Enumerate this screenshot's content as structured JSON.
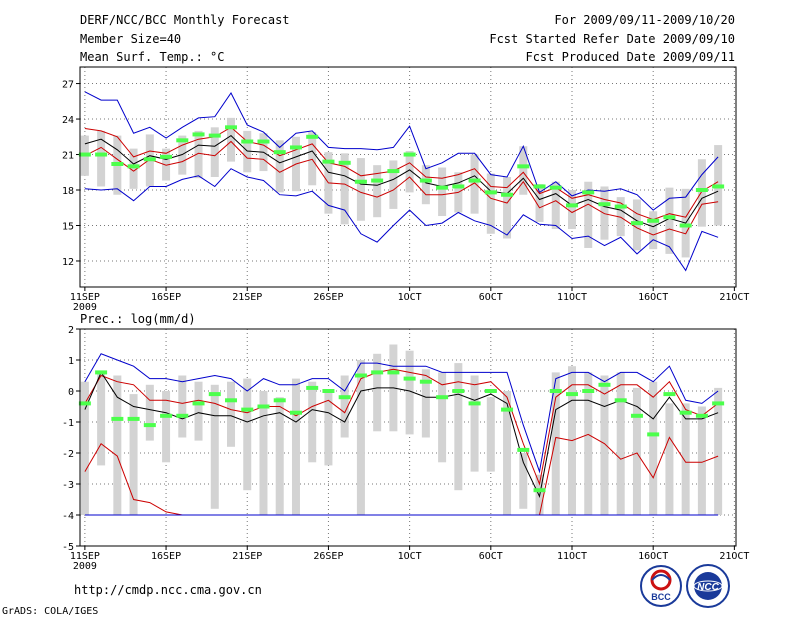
{
  "header": {
    "title": "DERF/NCC/BCC Monthly Forecast",
    "member_size": "Member Size=40",
    "variable_top": "Mean Surf. Temp.: °C",
    "period": "For 2009/09/11-2009/10/20",
    "start_date": "Fcst Started Refer Date 2009/09/10",
    "produced_date": "Fcst Produced Date 2009/09/11"
  },
  "footer": {
    "url": "http://cmdp.ncc.cma.gov.cn",
    "credit": "GrADS: COLA/IGES",
    "logo_bcc": "BCC",
    "logo_ncc": "NCC"
  },
  "colors": {
    "max_min": "#0000cc",
    "percentile": "#cc0000",
    "ensemble_mean": "#000000",
    "observation_marker": "#4cff4c",
    "spread_bar": "#d3d3d3"
  },
  "chart_data": [
    {
      "type": "line",
      "title": "Mean Surf. Temp.: °C",
      "x_tick_labels": [
        "11SEP",
        "16SEP",
        "21SEP",
        "26SEP",
        "1OCT",
        "6OCT",
        "11OCT",
        "16OCT",
        "21OCT"
      ],
      "x_year_label": "2009",
      "x_days": [
        1,
        2,
        3,
        4,
        5,
        6,
        7,
        8,
        9,
        10,
        11,
        12,
        13,
        14,
        15,
        16,
        17,
        18,
        19,
        20,
        21,
        22,
        23,
        24,
        25,
        26,
        27,
        28,
        29,
        30,
        31,
        32,
        33,
        34,
        35,
        36,
        37,
        38,
        39,
        40
      ],
      "ylim": [
        9.8,
        28.4
      ],
      "y_ticks": [
        12,
        15,
        18,
        21,
        24,
        27
      ],
      "series": [
        {
          "name": "max",
          "color": "#0000cc",
          "values": [
            26.3,
            25.6,
            25.6,
            22.8,
            23.3,
            22.4,
            23.3,
            24.1,
            24.2,
            26.2,
            23.5,
            22.9,
            21.6,
            22.8,
            23.0,
            21.6,
            21.5,
            21.5,
            21.4,
            21.6,
            23.4,
            19.8,
            20.3,
            21.1,
            21.1,
            19.3,
            19.1,
            21.7,
            17.8,
            18.7,
            17.5,
            18.0,
            17.9,
            18.1,
            17.6,
            16.3,
            17.3,
            17.4,
            19.3,
            20.8
          ]
        },
        {
          "name": "p90",
          "color": "#cc0000",
          "values": [
            23.2,
            23.0,
            22.5,
            20.8,
            21.3,
            21.1,
            21.8,
            22.3,
            22.5,
            23.3,
            22.1,
            21.8,
            20.9,
            21.4,
            21.9,
            20.3,
            20.0,
            19.2,
            19.4,
            19.6,
            20.3,
            19.1,
            19.0,
            19.3,
            19.8,
            18.3,
            18.2,
            19.5,
            17.7,
            18.2,
            17.3,
            17.6,
            17.2,
            16.9,
            16.0,
            15.5,
            16.0,
            15.7,
            17.9,
            18.7
          ]
        },
        {
          "name": "mean",
          "color": "#000000",
          "values": [
            21.9,
            22.3,
            21.4,
            20.2,
            20.9,
            20.6,
            21.0,
            21.8,
            21.7,
            22.6,
            21.3,
            21.2,
            20.3,
            20.8,
            21.3,
            19.5,
            19.2,
            18.5,
            18.4,
            18.9,
            19.7,
            18.6,
            18.3,
            18.6,
            19.2,
            17.9,
            17.7,
            19.0,
            17.2,
            17.7,
            16.7,
            17.2,
            16.6,
            16.3,
            15.4,
            14.9,
            15.6,
            15.2,
            17.3,
            17.9
          ]
        },
        {
          "name": "p10",
          "color": "#cc0000",
          "values": [
            20.9,
            21.6,
            20.6,
            19.6,
            20.6,
            20.1,
            20.4,
            21.1,
            20.9,
            22.1,
            20.7,
            20.6,
            19.5,
            20.2,
            20.6,
            18.6,
            18.5,
            17.8,
            17.4,
            18.0,
            19.1,
            17.6,
            17.6,
            17.8,
            18.6,
            17.3,
            16.9,
            18.7,
            16.5,
            17.1,
            16.1,
            16.8,
            16.0,
            15.7,
            14.8,
            14.2,
            14.7,
            14.3,
            16.8,
            17.0
          ]
        },
        {
          "name": "min",
          "color": "#0000cc",
          "values": [
            18.1,
            18.0,
            18.1,
            17.1,
            18.3,
            18.3,
            18.9,
            19.2,
            18.3,
            19.8,
            19.1,
            18.8,
            17.6,
            17.5,
            17.9,
            16.7,
            16.3,
            14.3,
            13.6,
            15.0,
            16.3,
            15.0,
            15.2,
            16.1,
            15.4,
            15.0,
            14.2,
            15.9,
            15.1,
            15.0,
            13.9,
            14.1,
            13.3,
            14.0,
            12.6,
            13.8,
            13.2,
            11.2,
            14.5,
            14.0
          ]
        }
      ],
      "spread": {
        "high": [
          22.6,
          23.0,
          22.6,
          21.5,
          22.7,
          21.5,
          22.6,
          23.0,
          23.3,
          24.1,
          23.0,
          22.8,
          22.2,
          22.5,
          22.9,
          21.2,
          21.1,
          20.7,
          20.1,
          20.5,
          21.3,
          20.1,
          19.9,
          19.5,
          21.0,
          19.4,
          19.1,
          21.7,
          18.5,
          18.7,
          18.0,
          18.7,
          18.3,
          17.4,
          17.2,
          16.2,
          18.2,
          18.1,
          20.6,
          21.8
        ],
        "low": [
          19.2,
          18.3,
          17.6,
          18.1,
          18.3,
          18.8,
          19.3,
          19.0,
          19.1,
          20.4,
          19.5,
          19.6,
          17.8,
          17.9,
          18.4,
          16.0,
          15.1,
          15.4,
          15.7,
          16.4,
          17.8,
          16.8,
          15.8,
          16.1,
          16.0,
          14.3,
          13.9,
          17.6,
          15.3,
          14.7,
          14.7,
          13.1,
          13.8,
          14.1,
          12.9,
          13.0,
          12.6,
          12.3,
          14.9,
          15.0
        ]
      },
      "observations": [
        21.0,
        21.0,
        20.2,
        20.0,
        20.6,
        20.8,
        22.2,
        22.7,
        22.6,
        23.3,
        22.1,
        22.1,
        21.2,
        21.6,
        22.5,
        20.4,
        20.3,
        18.7,
        18.8,
        19.6,
        21.0,
        18.8,
        18.2,
        18.3,
        18.8,
        17.8,
        17.6,
        20.0,
        18.3,
        18.2,
        16.7,
        17.8,
        16.8,
        16.6,
        15.2,
        15.4,
        15.7,
        15.0,
        18.0,
        18.3
      ]
    },
    {
      "type": "line",
      "title": "Prec.: log(mm/d)",
      "x_tick_labels": [
        "11SEP",
        "16SEP",
        "21SEP",
        "26SEP",
        "1OCT",
        "6OCT",
        "11OCT",
        "16OCT",
        "21OCT"
      ],
      "x_year_label": "2009",
      "x_days": [
        1,
        2,
        3,
        4,
        5,
        6,
        7,
        8,
        9,
        10,
        11,
        12,
        13,
        14,
        15,
        16,
        17,
        18,
        19,
        20,
        21,
        22,
        23,
        24,
        25,
        26,
        27,
        28,
        29,
        30,
        31,
        32,
        33,
        34,
        35,
        36,
        37,
        38,
        39,
        40
      ],
      "ylim": [
        -5,
        2
      ],
      "y_ticks": [
        -5,
        -4,
        -3,
        -2,
        -1,
        0,
        1,
        2
      ],
      "series": [
        {
          "name": "max",
          "color": "#0000cc",
          "values": [
            0.3,
            1.2,
            1.0,
            0.8,
            0.4,
            0.4,
            0.3,
            0.4,
            0.5,
            0.4,
            0.0,
            0.4,
            0.2,
            0.2,
            0.4,
            0.4,
            0.0,
            0.9,
            0.9,
            0.8,
            0.8,
            0.8,
            0.6,
            0.6,
            0.6,
            0.6,
            0.6,
            -1.1,
            -2.6,
            0.4,
            0.6,
            0.6,
            0.3,
            0.6,
            0.6,
            0.3,
            0.8,
            -0.3,
            -0.4,
            0.0
          ]
        },
        {
          "name": "p90",
          "color": "#cc0000",
          "values": [
            -0.4,
            0.5,
            0.3,
            0.2,
            -0.3,
            -0.3,
            -0.4,
            -0.3,
            -0.4,
            -0.6,
            -0.7,
            -0.5,
            -0.5,
            -0.8,
            -0.5,
            -0.3,
            -0.7,
            0.4,
            0.6,
            0.7,
            0.6,
            0.5,
            0.2,
            0.3,
            0.2,
            0.3,
            -0.2,
            -1.7,
            -3.0,
            -0.2,
            0.2,
            0.2,
            -0.1,
            0.2,
            0.2,
            -0.2,
            0.3,
            -0.6,
            -0.8,
            -0.4
          ]
        },
        {
          "name": "mean",
          "color": "#000000",
          "values": [
            -0.6,
            0.6,
            -0.2,
            -0.5,
            -0.6,
            -0.7,
            -0.9,
            -0.7,
            -0.8,
            -0.8,
            -1.0,
            -0.8,
            -0.7,
            -1.0,
            -0.6,
            -0.7,
            -1.0,
            0.0,
            0.1,
            0.1,
            0.0,
            -0.2,
            -0.2,
            -0.1,
            -0.3,
            -0.1,
            -0.4,
            -2.3,
            -3.4,
            -0.6,
            -0.3,
            -0.3,
            -0.5,
            -0.3,
            -0.5,
            -0.9,
            -0.2,
            -0.9,
            -0.9,
            -0.7
          ]
        },
        {
          "name": "p10",
          "color": "#cc0000",
          "values": [
            -2.6,
            -1.7,
            -2.1,
            -3.5,
            -3.6,
            -3.9,
            -4.0,
            -4.0,
            -4.0,
            -4.0,
            -4.0,
            -4.0,
            -4.0,
            -4.0,
            -4.0,
            -4.0,
            -4.0,
            -4.0,
            -4.0,
            -4.0,
            -4.0,
            -4.0,
            -4.0,
            -4.0,
            -4.0,
            -4.0,
            -4.0,
            -4.0,
            -4.0,
            -1.5,
            -1.6,
            -1.4,
            -1.7,
            -2.2,
            -2.0,
            -2.8,
            -1.5,
            -2.3,
            -2.3,
            -2.1
          ]
        },
        {
          "name": "min",
          "color": "#0000cc",
          "values": [
            -4.0,
            -4.0,
            -4.0,
            -4.0,
            -4.0,
            -4.0,
            -4.0,
            -4.0,
            -4.0,
            -4.0,
            -4.0,
            -4.0,
            -4.0,
            -4.0,
            -4.0,
            -4.0,
            -4.0,
            -4.0,
            -4.0,
            -4.0,
            -4.0,
            -4.0,
            -4.0,
            -4.0,
            -4.0,
            -4.0,
            -4.0,
            -4.0,
            -4.0,
            -4.0,
            -4.0,
            -4.0,
            -4.0,
            -4.0,
            -4.0,
            -4.0,
            -4.0,
            -4.0,
            -4.0,
            -4.0
          ]
        }
      ],
      "spread": {
        "high": [
          0.3,
          0.6,
          0.5,
          -0.1,
          0.2,
          0.0,
          0.5,
          0.3,
          0.2,
          0.3,
          0.4,
          0.0,
          -0.2,
          0.4,
          0.3,
          0.0,
          0.5,
          1.0,
          1.2,
          1.5,
          1.3,
          0.7,
          0.6,
          0.9,
          0.5,
          -0.2,
          0.0,
          -2.0,
          -2.7,
          0.6,
          0.8,
          0.6,
          0.5,
          0.6,
          0.1,
          0.3,
          -0.4,
          -0.4,
          -0.5,
          0.1
        ],
        "low": [
          -4.0,
          -2.4,
          -4.0,
          -4.0,
          -1.6,
          -2.3,
          -1.5,
          -1.6,
          -3.8,
          -1.8,
          -3.2,
          -4.0,
          -4.0,
          -4.0,
          -2.3,
          -2.4,
          -1.5,
          -4.0,
          -1.3,
          -1.3,
          -1.4,
          -1.5,
          -2.3,
          -3.2,
          -2.6,
          -2.6,
          -4.0,
          -3.8,
          -4.0,
          -4.0,
          -4.0,
          -4.0,
          -4.0,
          -4.0,
          -4.0,
          -4.0,
          -4.0,
          -4.0,
          -4.0,
          -4.0
        ]
      },
      "observations": [
        -0.4,
        0.6,
        -0.9,
        -0.9,
        -1.1,
        -0.8,
        -0.8,
        -0.4,
        -0.1,
        -0.3,
        -0.6,
        -0.5,
        -0.3,
        -0.7,
        0.1,
        0.0,
        -0.2,
        0.5,
        0.6,
        0.6,
        0.4,
        0.3,
        -0.2,
        0.0,
        -0.4,
        0.0,
        -0.6,
        -1.9,
        -3.2,
        0.0,
        -0.1,
        0.0,
        0.2,
        -0.3,
        -0.8,
        -1.4,
        -0.1,
        -0.7,
        -0.8,
        -0.4
      ]
    }
  ]
}
